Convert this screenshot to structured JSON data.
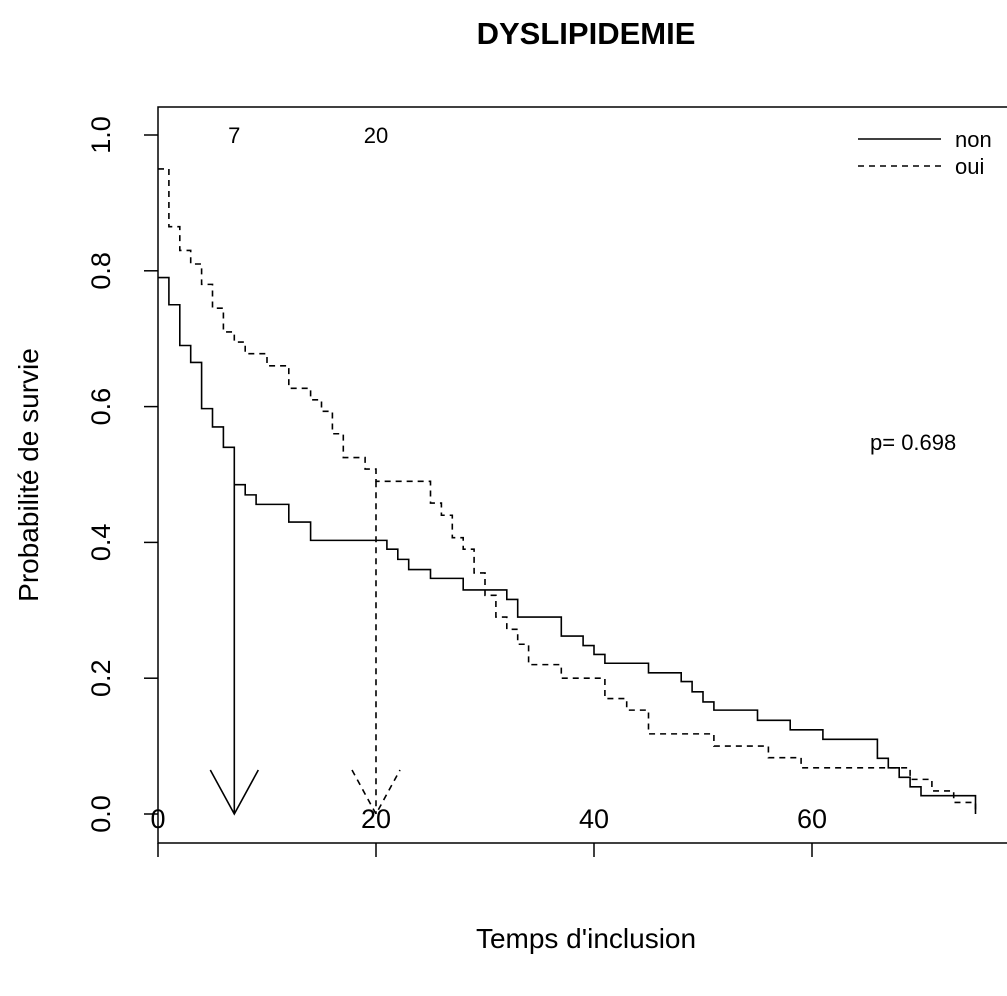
{
  "chart_data": {
    "type": "line",
    "title": "DYSLIPIDEMIE",
    "xlabel": "Temps d'inclusion",
    "ylabel": "Probabilité de survie",
    "xlim": [
      0,
      75
    ],
    "ylim": [
      0,
      1
    ],
    "x_ticks": [
      0,
      20,
      40,
      60
    ],
    "y_ticks": [
      0.0,
      0.2,
      0.4,
      0.6,
      0.8,
      1.0
    ],
    "y_tick_labels": [
      "0.0",
      "0.2",
      "0.4",
      "0.6",
      "0.8",
      "1.0"
    ],
    "legend": {
      "position": "top-right",
      "entries": [
        "non",
        "oui"
      ]
    },
    "p_value_text": "p= 0.698",
    "median_markers": [
      {
        "label": "7",
        "x": 7,
        "series": "non"
      },
      {
        "label": "20",
        "x": 20,
        "series": "oui"
      }
    ],
    "series": [
      {
        "name": "non",
        "line_style": "solid",
        "points": [
          [
            0,
            0.79
          ],
          [
            1,
            0.75
          ],
          [
            2,
            0.69
          ],
          [
            3,
            0.665
          ],
          [
            4,
            0.597
          ],
          [
            5,
            0.57
          ],
          [
            6,
            0.54
          ],
          [
            7,
            0.485
          ],
          [
            8,
            0.47
          ],
          [
            9,
            0.456
          ],
          [
            12,
            0.43
          ],
          [
            14,
            0.403
          ],
          [
            20,
            0.403
          ],
          [
            21,
            0.39
          ],
          [
            22,
            0.375
          ],
          [
            23,
            0.36
          ],
          [
            25,
            0.347
          ],
          [
            28,
            0.33
          ],
          [
            32,
            0.316
          ],
          [
            33,
            0.29
          ],
          [
            37,
            0.262
          ],
          [
            39,
            0.248
          ],
          [
            40,
            0.235
          ],
          [
            41,
            0.222
          ],
          [
            45,
            0.208
          ],
          [
            48,
            0.195
          ],
          [
            49,
            0.18
          ],
          [
            50,
            0.165
          ],
          [
            51,
            0.153
          ],
          [
            55,
            0.138
          ],
          [
            58,
            0.124
          ],
          [
            61,
            0.11
          ],
          [
            66,
            0.082
          ],
          [
            67,
            0.068
          ],
          [
            68,
            0.054
          ],
          [
            69,
            0.04
          ],
          [
            70,
            0.027
          ],
          [
            75,
            0.0
          ]
        ]
      },
      {
        "name": "oui",
        "line_style": "dashed",
        "points": [
          [
            0,
            0.95
          ],
          [
            1,
            0.865
          ],
          [
            2,
            0.83
          ],
          [
            3,
            0.81
          ],
          [
            4,
            0.78
          ],
          [
            5,
            0.745
          ],
          [
            6,
            0.71
          ],
          [
            7,
            0.695
          ],
          [
            8,
            0.678
          ],
          [
            10,
            0.66
          ],
          [
            12,
            0.627
          ],
          [
            14,
            0.61
          ],
          [
            15,
            0.593
          ],
          [
            16,
            0.56
          ],
          [
            17,
            0.525
          ],
          [
            19,
            0.508
          ],
          [
            20,
            0.49
          ],
          [
            25,
            0.458
          ],
          [
            26,
            0.44
          ],
          [
            27,
            0.407
          ],
          [
            28,
            0.39
          ],
          [
            29,
            0.355
          ],
          [
            30,
            0.322
          ],
          [
            31,
            0.29
          ],
          [
            32,
            0.272
          ],
          [
            33,
            0.25
          ],
          [
            34,
            0.22
          ],
          [
            37,
            0.2
          ],
          [
            41,
            0.17
          ],
          [
            43,
            0.153
          ],
          [
            45,
            0.118
          ],
          [
            51,
            0.1
          ],
          [
            56,
            0.083
          ],
          [
            59,
            0.068
          ],
          [
            69,
            0.051
          ],
          [
            71,
            0.034
          ],
          [
            73,
            0.017
          ],
          [
            75,
            0.0
          ]
        ]
      }
    ]
  }
}
